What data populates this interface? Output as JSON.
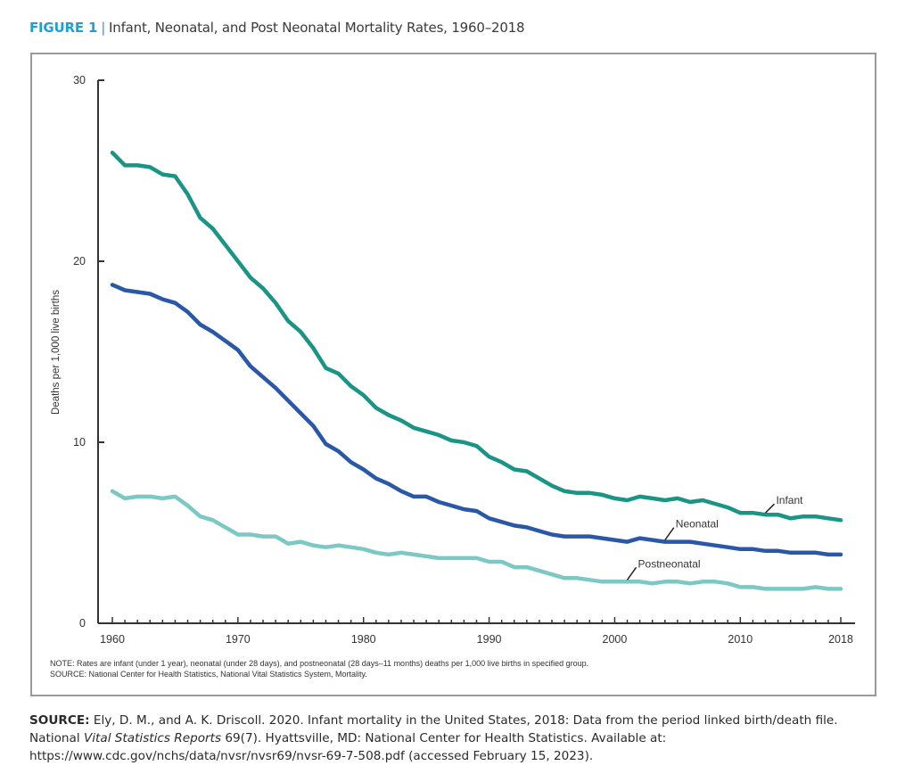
{
  "header": {
    "figure_label": "FIGURE 1",
    "separator": "|",
    "title": "Infant, Neonatal, and Post Neonatal Mortality Rates, 1960–2018"
  },
  "colors": {
    "accent": "#1fa0d0",
    "infant": "#1a9585",
    "neonatal": "#2a58a8",
    "postneonatal": "#7cc8c4",
    "axis": "#333333"
  },
  "chart_data": {
    "type": "line",
    "title": "Infant, Neonatal, and Post Neonatal Mortality Rates, 1960–2018",
    "xlabel": "",
    "ylabel": "Deaths per 1,000 live births",
    "xlim": [
      1960,
      2018
    ],
    "ylim": [
      0,
      30
    ],
    "x_tick_labels": [
      "1960",
      "1970",
      "1980",
      "1990",
      "2000",
      "2010",
      "2018"
    ],
    "x_ticks": [
      1960,
      1970,
      1980,
      1990,
      2000,
      2010,
      2018
    ],
    "y_tick_labels": [
      "0",
      "10",
      "20",
      "30"
    ],
    "y_ticks": [
      0,
      10,
      20,
      30
    ],
    "grid": false,
    "legend": "inline labels near right end of each line",
    "x": [
      1960,
      1961,
      1962,
      1963,
      1964,
      1965,
      1966,
      1967,
      1968,
      1969,
      1970,
      1971,
      1972,
      1973,
      1974,
      1975,
      1976,
      1977,
      1978,
      1979,
      1980,
      1981,
      1982,
      1983,
      1984,
      1985,
      1986,
      1987,
      1988,
      1989,
      1990,
      1991,
      1992,
      1993,
      1994,
      1995,
      1996,
      1997,
      1998,
      1999,
      2000,
      2001,
      2002,
      2003,
      2004,
      2005,
      2006,
      2007,
      2008,
      2009,
      2010,
      2011,
      2012,
      2013,
      2014,
      2015,
      2016,
      2017,
      2018
    ],
    "series": [
      {
        "name": "Infant",
        "key": "infant",
        "label_anchor_year": 2012,
        "values": [
          26.0,
          25.3,
          25.3,
          25.2,
          24.8,
          24.7,
          23.7,
          22.4,
          21.8,
          20.9,
          20.0,
          19.1,
          18.5,
          17.7,
          16.7,
          16.1,
          15.2,
          14.1,
          13.8,
          13.1,
          12.6,
          11.9,
          11.5,
          11.2,
          10.8,
          10.6,
          10.4,
          10.1,
          10.0,
          9.8,
          9.2,
          8.9,
          8.5,
          8.4,
          8.0,
          7.6,
          7.3,
          7.2,
          7.2,
          7.1,
          6.9,
          6.8,
          7.0,
          6.9,
          6.8,
          6.9,
          6.7,
          6.8,
          6.6,
          6.4,
          6.1,
          6.1,
          6.0,
          6.0,
          5.8,
          5.9,
          5.9,
          5.8,
          5.7
        ]
      },
      {
        "name": "Neonatal",
        "key": "neonatal",
        "label_anchor_year": 2004,
        "values": [
          18.7,
          18.4,
          18.3,
          18.2,
          17.9,
          17.7,
          17.2,
          16.5,
          16.1,
          15.6,
          15.1,
          14.2,
          13.6,
          13.0,
          12.3,
          11.6,
          10.9,
          9.9,
          9.5,
          8.9,
          8.5,
          8.0,
          7.7,
          7.3,
          7.0,
          7.0,
          6.7,
          6.5,
          6.3,
          6.2,
          5.8,
          5.6,
          5.4,
          5.3,
          5.1,
          4.9,
          4.8,
          4.8,
          4.8,
          4.7,
          4.6,
          4.5,
          4.7,
          4.6,
          4.5,
          4.5,
          4.5,
          4.4,
          4.3,
          4.2,
          4.1,
          4.1,
          4.0,
          4.0,
          3.9,
          3.9,
          3.9,
          3.8,
          3.8
        ]
      },
      {
        "name": "Postneonatal",
        "key": "postneonatal",
        "label_anchor_year": 2001,
        "values": [
          7.3,
          6.9,
          7.0,
          7.0,
          6.9,
          7.0,
          6.5,
          5.9,
          5.7,
          5.3,
          4.9,
          4.9,
          4.8,
          4.8,
          4.4,
          4.5,
          4.3,
          4.2,
          4.3,
          4.2,
          4.1,
          3.9,
          3.8,
          3.9,
          3.8,
          3.7,
          3.6,
          3.6,
          3.6,
          3.6,
          3.4,
          3.4,
          3.1,
          3.1,
          2.9,
          2.7,
          2.5,
          2.5,
          2.4,
          2.3,
          2.3,
          2.3,
          2.3,
          2.2,
          2.3,
          2.3,
          2.2,
          2.3,
          2.3,
          2.2,
          2.0,
          2.0,
          1.9,
          1.9,
          1.9,
          1.9,
          2.0,
          1.9,
          1.9
        ]
      }
    ]
  },
  "notes": {
    "note": "NOTE: Rates are infant (under 1 year), neonatal (under 28 days), and postneonatal (28 days–11 months) deaths per 1,000 live births in specified group.",
    "source": "SOURCE: National Center for Health Statistics, National Vital Statistics System, Mortality."
  },
  "citation": {
    "label": "SOURCE:",
    "text_1": " Ely, D. M., and A. K. Driscoll. 2020. Infant mortality in the United States, 2018: Data from the period linked birth/death file. National ",
    "italic": "Vital Statistics Reports",
    "text_2": " 69(7). Hyattsville, MD: National Center for Health Statistics. Available at: https://www.cdc.gov/nchs/data/nvsr/nvsr69/nvsr-69-7-508.pdf (accessed February 15, 2023)."
  }
}
